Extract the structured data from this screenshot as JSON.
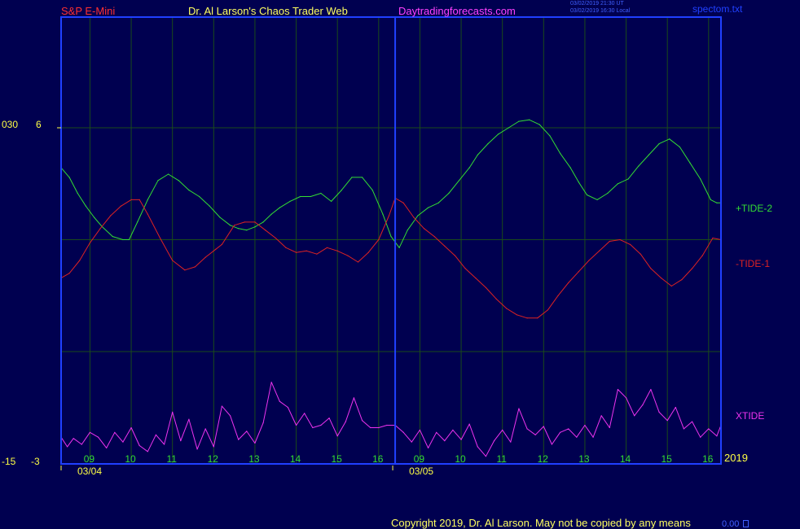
{
  "header": {
    "instrument": "S&P E-Mini",
    "site_title": "Dr. Al Larson's Chaos Trader Web",
    "site_url": "Daytradingforecasts.com",
    "timestamp_utc": "03/02/2019 21:30 UT",
    "timestamp_local": "03/02/2019 16:30 Local",
    "file_name": "spectom.txt"
  },
  "footer": {
    "copyright": "Copyright 2019, Dr. Al Larson. May not be copied by any means",
    "corner_value": "0.00"
  },
  "colors": {
    "background": "#000050",
    "frame": "#2040ff",
    "grid": "#1a4a1a",
    "tide2": "#33dd33",
    "tide1": "#dd2222",
    "xtide": "#ee33ee",
    "axis_text": "#ffff44",
    "hour_text": "#33dd33",
    "title_red": "#ff3030",
    "title_yellow": "#ffff60",
    "title_magenta": "#ff40ff"
  },
  "chart_data": {
    "type": "line",
    "x_domain": [
      0,
      16
    ],
    "x_unit": "trading hours",
    "hour_ticks": [
      {
        "x": 1,
        "label": "09"
      },
      {
        "x": 2,
        "label": "10"
      },
      {
        "x": 3,
        "label": "11"
      },
      {
        "x": 4,
        "label": "12"
      },
      {
        "x": 5,
        "label": "13"
      },
      {
        "x": 6,
        "label": "14"
      },
      {
        "x": 7,
        "label": "15"
      },
      {
        "x": 8,
        "label": "16"
      },
      {
        "x": 9,
        "label": "09"
      },
      {
        "x": 10,
        "label": "10"
      },
      {
        "x": 11,
        "label": "11"
      },
      {
        "x": 12,
        "label": "12"
      },
      {
        "x": 13,
        "label": "13"
      },
      {
        "x": 14,
        "label": "14"
      },
      {
        "x": 15,
        "label": "15"
      },
      {
        "x": 16,
        "label": "16"
      }
    ],
    "date_ticks": [
      {
        "x": 0,
        "label": "03/04"
      },
      {
        "x": 8,
        "label": "03/05"
      }
    ],
    "year_label": "2019",
    "left_axis": {
      "top_labels": [
        "030",
        "6"
      ],
      "bottom_labels": [
        "-15",
        "-3"
      ],
      "range": [
        -3,
        6
      ]
    },
    "grid": true,
    "series": [
      {
        "name": "+TIDE-2",
        "axis": "right",
        "x": [
          0,
          0.2,
          0.4,
          0.6,
          0.8,
          1.0,
          1.25,
          1.5,
          1.65,
          1.85,
          2.1,
          2.35,
          2.6,
          2.85,
          3.1,
          3.35,
          3.6,
          3.85,
          4.1,
          4.3,
          4.5,
          4.7,
          4.9,
          5.1,
          5.3,
          5.55,
          5.8,
          6.05,
          6.3,
          6.55,
          6.8,
          7.05,
          7.3,
          7.55,
          7.8,
          8.0,
          8.2,
          8.4,
          8.65,
          8.9,
          9.15,
          9.4,
          9.65,
          9.9,
          10.1,
          10.35,
          10.6,
          10.85,
          11.1,
          11.35,
          11.6,
          11.85,
          12.1,
          12.35,
          12.55,
          12.75,
          13.0,
          13.25,
          13.5,
          13.75,
          14.0,
          14.25,
          14.5,
          14.75,
          15.0,
          15.25,
          15.5,
          15.75,
          15.9,
          16.0
        ],
        "y": [
          3.75,
          3.45,
          2.95,
          2.55,
          2.2,
          1.9,
          1.6,
          1.5,
          1.5,
          2.05,
          2.75,
          3.35,
          3.55,
          3.35,
          3.05,
          2.85,
          2.55,
          2.2,
          1.95,
          1.85,
          1.8,
          1.9,
          2.05,
          2.3,
          2.5,
          2.7,
          2.85,
          2.85,
          2.95,
          2.7,
          3.05,
          3.45,
          3.45,
          3.05,
          2.3,
          1.6,
          1.25,
          1.8,
          2.25,
          2.5,
          2.65,
          2.95,
          3.35,
          3.75,
          4.15,
          4.5,
          4.8,
          5.0,
          5.2,
          5.25,
          5.1,
          4.75,
          4.2,
          3.75,
          3.3,
          2.9,
          2.75,
          2.95,
          3.25,
          3.4,
          3.8,
          4.15,
          4.5,
          4.65,
          4.4,
          3.9,
          3.4,
          2.75,
          2.65,
          2.65
        ]
      },
      {
        "name": "-TIDE-1",
        "axis": "right",
        "x": [
          0,
          0.2,
          0.45,
          0.7,
          0.95,
          1.2,
          1.45,
          1.7,
          1.9,
          2.1,
          2.4,
          2.7,
          3.0,
          3.25,
          3.5,
          3.75,
          3.9,
          4.2,
          4.45,
          4.7,
          4.95,
          5.2,
          5.45,
          5.7,
          5.95,
          6.2,
          6.45,
          6.7,
          6.95,
          7.2,
          7.45,
          7.7,
          7.95,
          8.1,
          8.3,
          8.55,
          8.8,
          9.05,
          9.3,
          9.55,
          9.8,
          10.05,
          10.3,
          10.55,
          10.8,
          11.05,
          11.3,
          11.55,
          11.8,
          12.05,
          12.3,
          12.55,
          12.8,
          13.05,
          13.3,
          13.55,
          13.8,
          14.05,
          14.3,
          14.55,
          14.8,
          15.05,
          15.3,
          15.55,
          15.8,
          16.0
        ],
        "y": [
          0.3,
          0.45,
          0.85,
          1.4,
          1.85,
          2.25,
          2.55,
          2.75,
          2.75,
          2.3,
          1.55,
          0.85,
          0.55,
          0.65,
          0.95,
          1.2,
          1.35,
          1.95,
          2.05,
          2.05,
          1.8,
          1.55,
          1.25,
          1.1,
          1.15,
          1.05,
          1.25,
          1.15,
          1.0,
          0.8,
          1.1,
          1.5,
          2.25,
          2.8,
          2.65,
          2.2,
          1.85,
          1.6,
          1.3,
          1.0,
          0.6,
          0.3,
          0.0,
          -0.35,
          -0.65,
          -0.85,
          -0.95,
          -0.95,
          -0.7,
          -0.25,
          0.15,
          0.5,
          0.85,
          1.15,
          1.45,
          1.5,
          1.35,
          1.05,
          0.6,
          0.3,
          0.05,
          0.25,
          0.6,
          1.0,
          1.55,
          1.5
        ]
      },
      {
        "name": "XTIDE",
        "axis": "bottom",
        "x": [
          0,
          0.15,
          0.3,
          0.5,
          0.7,
          0.9,
          1.1,
          1.3,
          1.5,
          1.7,
          1.9,
          2.1,
          2.3,
          2.5,
          2.7,
          2.9,
          3.1,
          3.3,
          3.5,
          3.7,
          3.9,
          4.1,
          4.3,
          4.5,
          4.7,
          4.9,
          5.1,
          5.3,
          5.5,
          5.7,
          5.9,
          6.1,
          6.3,
          6.5,
          6.7,
          6.9,
          7.1,
          7.3,
          7.5,
          7.7,
          7.9,
          8.1,
          8.3,
          8.5,
          8.7,
          8.9,
          9.1,
          9.3,
          9.5,
          9.7,
          9.9,
          10.1,
          10.3,
          10.5,
          10.7,
          10.9,
          11.1,
          11.3,
          11.5,
          11.7,
          11.9,
          12.1,
          12.3,
          12.5,
          12.7,
          12.9,
          13.1,
          13.3,
          13.5,
          13.7,
          13.9,
          14.1,
          14.3,
          14.5,
          14.7,
          14.9,
          15.1,
          15.3,
          15.5,
          15.7,
          15.9,
          16.0
        ],
        "y": [
          -1.95,
          -2.35,
          -2.0,
          -2.25,
          -1.75,
          -1.95,
          -2.4,
          -1.75,
          -2.15,
          -1.55,
          -2.3,
          -2.55,
          -1.85,
          -2.25,
          -0.9,
          -2.1,
          -1.2,
          -2.45,
          -1.6,
          -2.35,
          -0.65,
          -1.05,
          -2.05,
          -1.7,
          -2.2,
          -1.35,
          0.35,
          -0.45,
          -0.7,
          -1.45,
          -0.95,
          -1.55,
          -1.45,
          -1.15,
          -1.9,
          -1.3,
          -0.3,
          -1.25,
          -1.55,
          -1.55,
          -1.45,
          -1.45,
          -1.75,
          -2.15,
          -1.65,
          -2.4,
          -1.75,
          -2.1,
          -1.65,
          -2.05,
          -1.4,
          -2.35,
          -2.75,
          -2.1,
          -1.65,
          -2.15,
          -0.75,
          -1.6,
          -1.85,
          -1.5,
          -2.25,
          -1.75,
          -1.6,
          -1.95,
          -1.45,
          -1.95,
          -1.05,
          -1.55,
          0.05,
          -0.3,
          -1.05,
          -0.6,
          0.05,
          -0.9,
          -1.25,
          -0.7,
          -1.6,
          -1.3,
          -1.95,
          -1.6,
          -1.9,
          -1.45
        ]
      }
    ]
  }
}
